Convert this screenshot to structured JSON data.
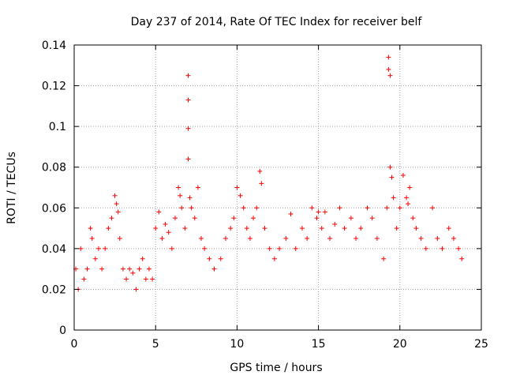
{
  "chart_data": {
    "type": "scatter",
    "title": "Day 237 of 2014, Rate Of TEC Index for receiver belf",
    "xlabel": "GPS time / hours",
    "ylabel": "ROTI / TECUs",
    "xlim": [
      0,
      25
    ],
    "ylim": [
      0,
      0.14
    ],
    "x_ticks": [
      0,
      5,
      10,
      15,
      20,
      25
    ],
    "x_tick_labels": [
      "0",
      "5",
      "10",
      "15",
      "20",
      "25"
    ],
    "y_ticks": [
      0,
      0.02,
      0.04,
      0.06,
      0.08,
      0.1,
      0.12,
      0.14
    ],
    "y_tick_labels": [
      "0",
      "0.02",
      "0.04",
      "0.06",
      "0.08",
      "0.1",
      "0.12",
      "0.14"
    ],
    "grid": true,
    "marker": "+",
    "color": "#ff0000",
    "series": [
      {
        "name": "ROTI",
        "x": [
          0.1,
          0.25,
          0.4,
          0.6,
          0.8,
          1.0,
          1.1,
          1.3,
          1.5,
          1.7,
          1.9,
          2.1,
          2.3,
          2.5,
          2.6,
          2.7,
          2.8,
          3.0,
          3.2,
          3.4,
          3.6,
          3.8,
          4.0,
          4.2,
          4.4,
          4.6,
          4.8,
          5.0,
          5.2,
          5.4,
          5.6,
          5.8,
          6.0,
          6.2,
          6.4,
          6.5,
          6.6,
          6.8,
          7.0,
          7.0,
          7.0,
          7.0,
          7.1,
          7.2,
          7.4,
          7.6,
          7.8,
          8.0,
          8.3,
          8.6,
          9.0,
          9.3,
          9.6,
          9.8,
          10.0,
          10.2,
          10.4,
          10.6,
          10.8,
          11.0,
          11.2,
          11.4,
          11.5,
          11.7,
          12.0,
          12.3,
          12.6,
          13.0,
          13.3,
          13.6,
          14.0,
          14.3,
          14.6,
          14.9,
          15.0,
          15.2,
          15.4,
          15.7,
          16.0,
          16.3,
          16.6,
          17.0,
          17.3,
          17.6,
          18.0,
          18.3,
          18.6,
          19.0,
          19.2,
          19.3,
          19.3,
          19.4,
          19.4,
          19.5,
          19.6,
          19.8,
          20.0,
          20.2,
          20.4,
          20.5,
          20.6,
          20.8,
          21.0,
          21.3,
          21.6,
          22.0,
          22.3,
          22.6,
          23.0,
          23.3,
          23.6,
          23.8
        ],
        "y": [
          0.03,
          0.02,
          0.04,
          0.025,
          0.03,
          0.05,
          0.045,
          0.035,
          0.04,
          0.03,
          0.04,
          0.05,
          0.055,
          0.066,
          0.062,
          0.058,
          0.045,
          0.03,
          0.025,
          0.03,
          0.028,
          0.02,
          0.03,
          0.035,
          0.025,
          0.03,
          0.025,
          0.05,
          0.058,
          0.045,
          0.052,
          0.048,
          0.04,
          0.055,
          0.07,
          0.066,
          0.06,
          0.05,
          0.084,
          0.099,
          0.113,
          0.125,
          0.065,
          0.06,
          0.055,
          0.07,
          0.045,
          0.04,
          0.035,
          0.03,
          0.035,
          0.045,
          0.05,
          0.055,
          0.07,
          0.066,
          0.06,
          0.05,
          0.045,
          0.055,
          0.06,
          0.078,
          0.072,
          0.05,
          0.04,
          0.035,
          0.04,
          0.045,
          0.057,
          0.04,
          0.05,
          0.045,
          0.06,
          0.055,
          0.058,
          0.05,
          0.058,
          0.045,
          0.052,
          0.06,
          0.05,
          0.055,
          0.045,
          0.05,
          0.06,
          0.055,
          0.045,
          0.035,
          0.06,
          0.128,
          0.134,
          0.125,
          0.08,
          0.075,
          0.065,
          0.05,
          0.06,
          0.076,
          0.065,
          0.062,
          0.07,
          0.055,
          0.05,
          0.045,
          0.04,
          0.06,
          0.045,
          0.04,
          0.05,
          0.045,
          0.04,
          0.035
        ]
      }
    ]
  }
}
